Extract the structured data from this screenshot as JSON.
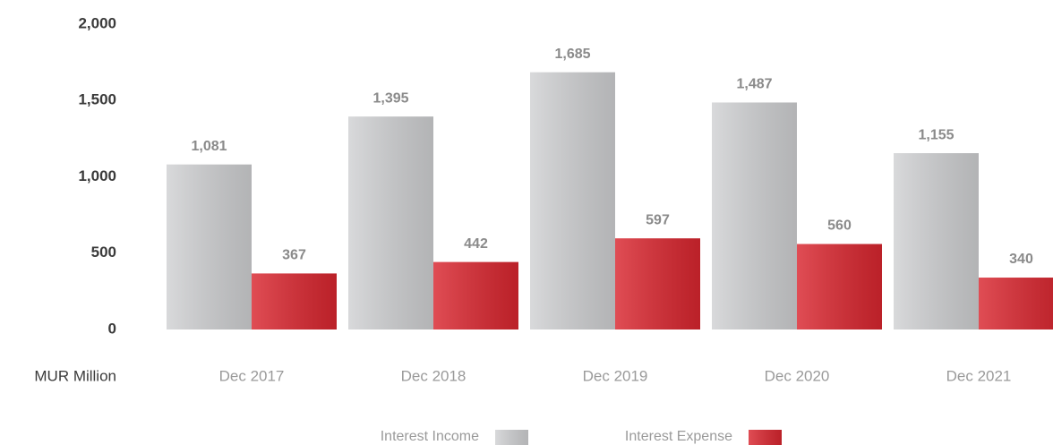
{
  "chart_data": {
    "type": "bar",
    "y_label": "MUR Million",
    "categories": [
      "Dec 2017",
      "Dec 2018",
      "Dec 2019",
      "Dec 2020",
      "Dec 2021"
    ],
    "series": [
      {
        "name": "Interest Income",
        "color": "#d0d1d3",
        "values": [
          1081,
          1395,
          1685,
          1487,
          1155
        ],
        "value_labels": [
          "1,081",
          "1,395",
          "1,685",
          "1,487",
          "1,155"
        ]
      },
      {
        "name": "Interest Expense",
        "color": "#d9262f",
        "values": [
          367,
          442,
          597,
          560,
          340
        ]
      }
    ],
    "ylim": [
      0,
      2000
    ],
    "yticks": [
      0,
      500,
      {
        "value": 1000,
        "label": "1,000"
      },
      {
        "value": 1500,
        "label": "1,500"
      },
      {
        "value": 2000,
        "label": "2,000"
      }
    ],
    "grid": false,
    "legend": "bottom"
  }
}
